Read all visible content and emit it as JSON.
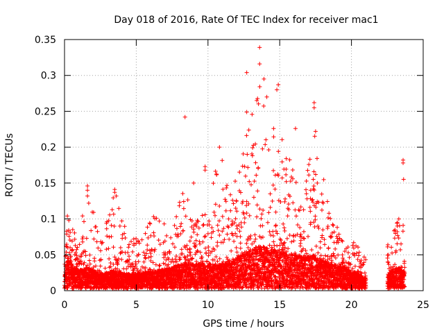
{
  "chart_data": {
    "type": "scatter",
    "title": "Day 018 of 2016, Rate Of TEC Index for receiver mac1",
    "xlabel": "GPS time / hours",
    "ylabel": "ROTI / TECUs",
    "xlim": [
      0,
      25
    ],
    "ylim": [
      0,
      0.35
    ],
    "grid": true,
    "marker": "+",
    "series_color": "#ff0000",
    "x_ticks": [
      {
        "value": 0,
        "label": "0"
      },
      {
        "value": 5,
        "label": "5"
      },
      {
        "value": 10,
        "label": "10"
      },
      {
        "value": 15,
        "label": "15"
      },
      {
        "value": 20,
        "label": "20"
      },
      {
        "value": 25,
        "label": "25"
      }
    ],
    "y_ticks": [
      {
        "value": 0,
        "label": "0"
      },
      {
        "value": 0.05,
        "label": "0.05"
      },
      {
        "value": 0.1,
        "label": "0.1"
      },
      {
        "value": 0.15,
        "label": "0.15"
      },
      {
        "value": 0.2,
        "label": "0.2"
      },
      {
        "value": 0.25,
        "label": "0.25"
      },
      {
        "value": 0.3,
        "label": "0.3"
      },
      {
        "value": 0.35,
        "label": "0.35"
      }
    ],
    "data_gap_hours": [
      21.0,
      22.5
    ],
    "data_end_hours": 23.7,
    "envelope": [
      {
        "x": 0.0,
        "typ": 0.015,
        "max": 0.07
      },
      {
        "x": 0.2,
        "typ": 0.04,
        "max": 0.104
      },
      {
        "x": 1.0,
        "typ": 0.025,
        "max": 0.075
      },
      {
        "x": 1.6,
        "typ": 0.03,
        "max": 0.145
      },
      {
        "x": 2.5,
        "typ": 0.02,
        "max": 0.07
      },
      {
        "x": 3.5,
        "typ": 0.025,
        "max": 0.14
      },
      {
        "x": 4.5,
        "typ": 0.02,
        "max": 0.07
      },
      {
        "x": 5.5,
        "typ": 0.022,
        "max": 0.09
      },
      {
        "x": 6.5,
        "typ": 0.025,
        "max": 0.11
      },
      {
        "x": 7.5,
        "typ": 0.03,
        "max": 0.09
      },
      {
        "x": 8.2,
        "typ": 0.035,
        "max": 0.16
      },
      {
        "x": 9.0,
        "typ": 0.035,
        "max": 0.1
      },
      {
        "x": 10.0,
        "typ": 0.035,
        "max": 0.11
      },
      {
        "x": 10.8,
        "typ": 0.035,
        "max": 0.2
      },
      {
        "x": 11.5,
        "typ": 0.035,
        "max": 0.13
      },
      {
        "x": 12.5,
        "typ": 0.05,
        "max": 0.2
      },
      {
        "x": 13.5,
        "typ": 0.06,
        "max": 0.3
      },
      {
        "x": 14.5,
        "typ": 0.055,
        "max": 0.24
      },
      {
        "x": 15.5,
        "typ": 0.05,
        "max": 0.2
      },
      {
        "x": 16.5,
        "typ": 0.045,
        "max": 0.16
      },
      {
        "x": 17.5,
        "typ": 0.045,
        "max": 0.22
      },
      {
        "x": 18.5,
        "typ": 0.035,
        "max": 0.11
      },
      {
        "x": 19.5,
        "typ": 0.03,
        "max": 0.08
      },
      {
        "x": 20.5,
        "typ": 0.02,
        "max": 0.065
      },
      {
        "x": 21.0,
        "typ": 0.015,
        "max": 0.06
      },
      {
        "x": 22.5,
        "typ": 0.02,
        "max": 0.065
      },
      {
        "x": 23.2,
        "typ": 0.03,
        "max": 0.1
      },
      {
        "x": 23.6,
        "typ": 0.025,
        "max": 0.16
      }
    ],
    "notable_points": [
      {
        "x": 13.6,
        "y": 0.339
      },
      {
        "x": 13.6,
        "y": 0.316
      },
      {
        "x": 12.7,
        "y": 0.304
      },
      {
        "x": 13.9,
        "y": 0.295
      },
      {
        "x": 14.9,
        "y": 0.287
      },
      {
        "x": 14.8,
        "y": 0.28
      },
      {
        "x": 13.4,
        "y": 0.265
      },
      {
        "x": 14.1,
        "y": 0.27
      },
      {
        "x": 17.4,
        "y": 0.262
      },
      {
        "x": 17.4,
        "y": 0.255
      },
      {
        "x": 12.7,
        "y": 0.249
      },
      {
        "x": 8.4,
        "y": 0.242
      },
      {
        "x": 16.1,
        "y": 0.226
      },
      {
        "x": 17.5,
        "y": 0.222
      },
      {
        "x": 10.8,
        "y": 0.2
      },
      {
        "x": 23.6,
        "y": 0.182
      },
      {
        "x": 23.6,
        "y": 0.178
      },
      {
        "x": 9.8,
        "y": 0.173
      },
      {
        "x": 9.8,
        "y": 0.168
      },
      {
        "x": 9.0,
        "y": 0.15
      },
      {
        "x": 1.6,
        "y": 0.146
      },
      {
        "x": 1.6,
        "y": 0.14
      },
      {
        "x": 1.6,
        "y": 0.132
      },
      {
        "x": 3.5,
        "y": 0.141
      },
      {
        "x": 3.5,
        "y": 0.137
      },
      {
        "x": 0.2,
        "y": 0.104
      },
      {
        "x": 23.3,
        "y": 0.1
      },
      {
        "x": 23.2,
        "y": 0.095
      }
    ]
  }
}
